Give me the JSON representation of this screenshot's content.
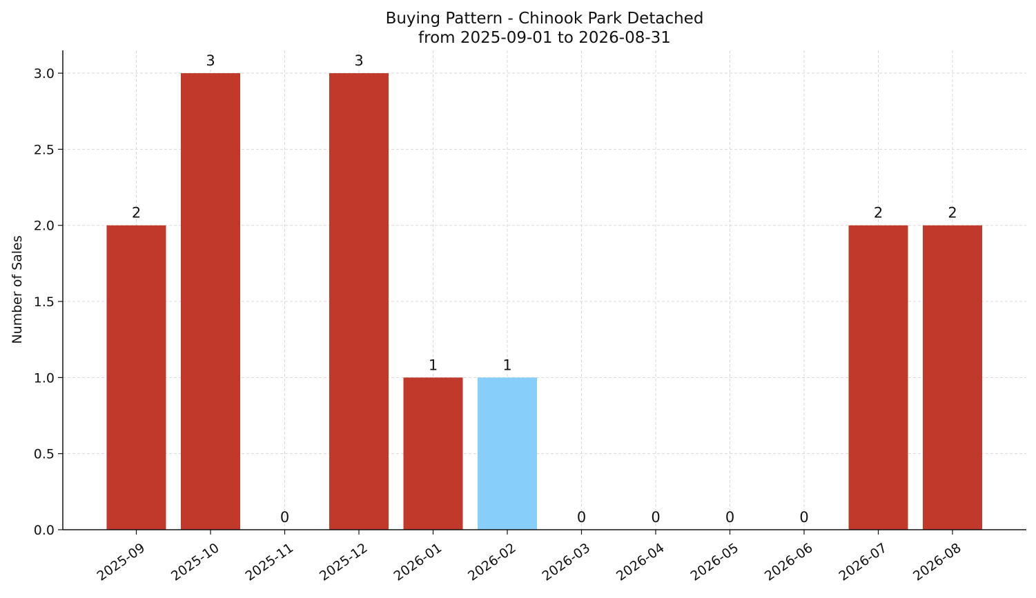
{
  "chart_data": {
    "type": "bar",
    "title_lines": [
      "Buying Pattern - Chinook Park Detached",
      "from 2025-09-01 to 2026-08-31"
    ],
    "xlabel": "",
    "ylabel": "Number of Sales",
    "categories": [
      "2025-09",
      "2025-10",
      "2025-11",
      "2025-12",
      "2026-01",
      "2026-02",
      "2026-03",
      "2026-04",
      "2026-05",
      "2026-06",
      "2026-07",
      "2026-08"
    ],
    "values": [
      2,
      3,
      0,
      3,
      1,
      1,
      0,
      0,
      0,
      0,
      2,
      2
    ],
    "data_labels": [
      "2",
      "3",
      "0",
      "3",
      "1",
      "1",
      "0",
      "0",
      "0",
      "0",
      "2",
      "2"
    ],
    "bar_colors": [
      "#c0392b",
      "#c0392b",
      "#c0392b",
      "#c0392b",
      "#c0392b",
      "#87cefa",
      "#c0392b",
      "#c0392b",
      "#c0392b",
      "#c0392b",
      "#c0392b",
      "#c0392b"
    ],
    "ylim": [
      0,
      3.15
    ],
    "yticks": [
      0,
      0.5,
      1,
      1.5,
      2,
      2.5,
      3
    ],
    "ytick_labels": [
      "0.0",
      "0.5",
      "1.0",
      "1.5",
      "2.0",
      "2.5",
      "3.0"
    ],
    "grid": true,
    "grid_color": "#d8d8d8",
    "axis_color": "#111111",
    "legend": "none"
  }
}
